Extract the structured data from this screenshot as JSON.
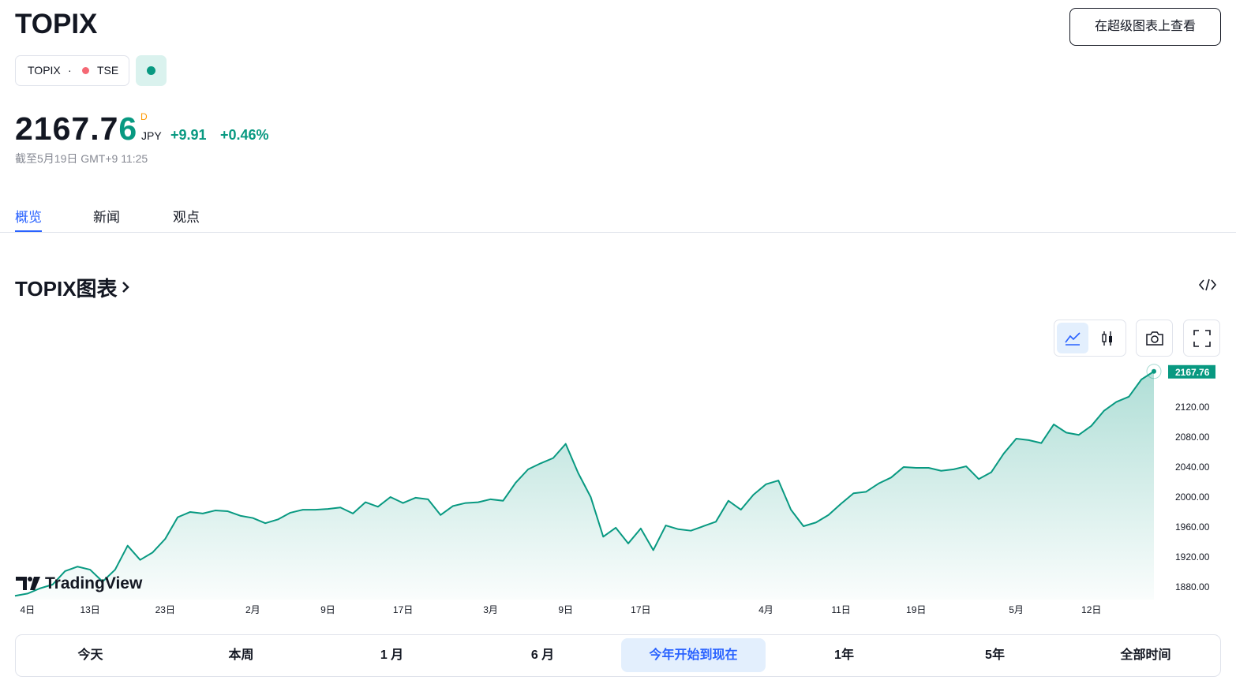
{
  "header": {
    "title": "TOPIX",
    "symbol": "TOPIX",
    "separator": "·",
    "exchange": "TSE",
    "button": "在超级图表上查看"
  },
  "quote": {
    "price": "2167.76",
    "interval": "D",
    "currency": "JPY",
    "change": "+9.91",
    "change_percent": "+0.46%",
    "timestamp": "截至5月19日 GMT+9 11:25"
  },
  "tabs": [
    "概览",
    "新闻",
    "观点"
  ],
  "active_tab": 0,
  "section_title": "TOPIX图表",
  "chart_watermark": "TradingView",
  "chart_data": {
    "type": "area",
    "color": "#089981",
    "categories": [
      null,
      "4日",
      null,
      null,
      null,
      null,
      "13日",
      null,
      null,
      null,
      null,
      null,
      "23日",
      null,
      null,
      null,
      null,
      null,
      null,
      "2月",
      null,
      null,
      null,
      null,
      null,
      "9日",
      null,
      null,
      null,
      null,
      null,
      "17日",
      null,
      null,
      null,
      null,
      null,
      null,
      "3月",
      null,
      null,
      null,
      null,
      null,
      "9日",
      null,
      null,
      null,
      null,
      null,
      "17日",
      null,
      null,
      null,
      null,
      null,
      null,
      null,
      null,
      null,
      "4月",
      null,
      null,
      null,
      null,
      null,
      "11日",
      null,
      null,
      null,
      null,
      null,
      "19日",
      null,
      null,
      null,
      null,
      null,
      null,
      null,
      "5月",
      null,
      null,
      null,
      null,
      null,
      "12日",
      null,
      null,
      null,
      null,
      null
    ],
    "values": [
      1868,
      1871,
      1878,
      1883,
      1901,
      1907,
      1903,
      1887,
      1903,
      1935,
      1916,
      1926,
      1944,
      1973,
      1980,
      1978,
      1982,
      1981,
      1975,
      1972,
      1965,
      1970,
      1979,
      1983,
      1983,
      1984,
      1986,
      1978,
      1993,
      1987,
      2000,
      1992,
      1999,
      1997,
      1976,
      1988,
      1992,
      1993,
      1997,
      1995,
      2019,
      2037,
      2045,
      2052,
      2071,
      2032,
      2000,
      1947,
      1959,
      1938,
      1958,
      1929,
      1962,
      1957,
      1955,
      1961,
      1967,
      1995,
      1983,
      2003,
      2017,
      2022,
      1983,
      1961,
      1966,
      1976,
      1991,
      2005,
      2007,
      2018,
      2026,
      2040,
      2039,
      2039,
      2035,
      2037,
      2041,
      2024,
      2033,
      2058,
      2078,
      2076,
      2072,
      2097,
      2086,
      2083,
      2095,
      2115,
      2127,
      2134,
      2157,
      2167.76
    ],
    "ylim": [
      1863,
      2177
    ],
    "yticks": [
      {
        "value": 1880,
        "label": "1880.00"
      },
      {
        "value": 1920,
        "label": "1920.00"
      },
      {
        "value": 1960,
        "label": "1960.00"
      },
      {
        "value": 2000,
        "label": "2000.00"
      },
      {
        "value": 2040,
        "label": "2040.00"
      },
      {
        "value": 2080,
        "label": "2080.00"
      },
      {
        "value": 2120,
        "label": "2120.00"
      }
    ],
    "grid": false
  },
  "range_buttons": [
    "今天",
    "本周",
    "1 月",
    "6 月",
    "今年开始到现在",
    "1年",
    "5年",
    "全部时间"
  ],
  "active_range": 4
}
